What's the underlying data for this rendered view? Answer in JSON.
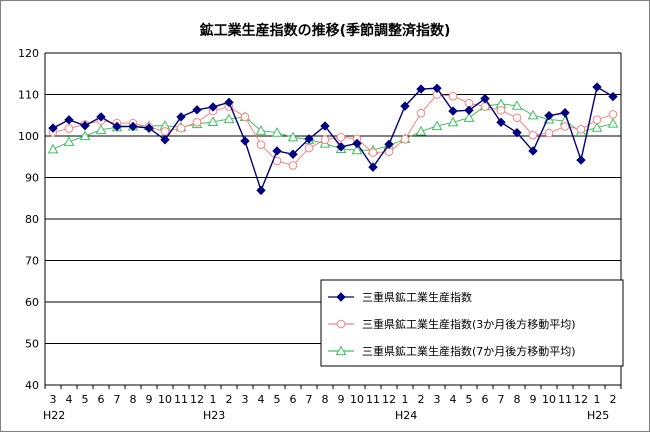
{
  "chart_data": {
    "type": "line",
    "title": "鉱工業生産指数の推移(季節調整済指数)",
    "ylim": [
      40,
      120
    ],
    "yticks": [
      40,
      50,
      60,
      70,
      80,
      90,
      100,
      110,
      120
    ],
    "grid": true,
    "legend_position": "bottom-right",
    "categories": [
      "3",
      "4",
      "5",
      "6",
      "7",
      "8",
      "9",
      "10",
      "11",
      "12",
      "1",
      "2",
      "3",
      "4",
      "5",
      "6",
      "7",
      "8",
      "9",
      "10",
      "11",
      "12",
      "1",
      "2",
      "3",
      "4",
      "5",
      "6",
      "7",
      "8",
      "9",
      "10",
      "11",
      "12",
      "1",
      "2"
    ],
    "era_labels": [
      {
        "index": 0,
        "label": "H22"
      },
      {
        "index": 10,
        "label": "H23"
      },
      {
        "index": 22,
        "label": "H24"
      },
      {
        "index": 34,
        "label": "H25"
      }
    ],
    "series": [
      {
        "name": "三重県鉱工業生産指数",
        "color": "#000080",
        "marker": "diamond",
        "values": [
          101.9,
          103.9,
          102.5,
          104.6,
          102.3,
          102.3,
          101.9,
          99.1,
          104.6,
          106.3,
          107.0,
          108.1,
          98.8,
          86.9,
          96.4,
          95.6,
          99.3,
          102.4,
          97.4,
          98.2,
          92.5,
          98.0,
          107.2,
          111.3,
          111.5,
          106.0,
          106.2,
          109.0,
          103.3,
          100.8,
          96.4,
          104.9,
          105.6,
          94.2,
          111.8,
          109.5
        ]
      },
      {
        "name": "三重県鉱工業生産指数(3か月後方移動平均)",
        "color": "#ff8080",
        "marker": "circle",
        "values": [
          100.9,
          101.8,
          102.8,
          103.7,
          103.1,
          103.1,
          102.2,
          101.1,
          101.9,
          103.3,
          106.0,
          107.1,
          104.6,
          97.9,
          94.0,
          92.9,
          97.1,
          99.1,
          99.7,
          99.3,
          96.0,
          96.2,
          99.2,
          105.5,
          110.0,
          109.6,
          107.9,
          107.1,
          106.2,
          104.4,
          100.2,
          100.7,
          102.3,
          101.6,
          103.9,
          105.2
        ]
      },
      {
        "name": "三重県鉱工業生産指数(7か月後方移動平均)",
        "color": "#40c060",
        "marker": "triangle",
        "values": [
          96.8,
          98.6,
          100.0,
          101.5,
          102.1,
          102.3,
          102.4,
          102.5,
          102.1,
          102.9,
          103.4,
          104.1,
          104.6,
          101.3,
          100.8,
          99.7,
          99.1,
          98.2,
          96.9,
          96.6,
          96.6,
          97.7,
          99.3,
          101.1,
          102.4,
          103.3,
          104.4,
          107.2,
          107.7,
          107.3,
          105.0,
          104.0,
          103.6,
          101.0,
          102.0,
          103.0
        ]
      }
    ]
  }
}
